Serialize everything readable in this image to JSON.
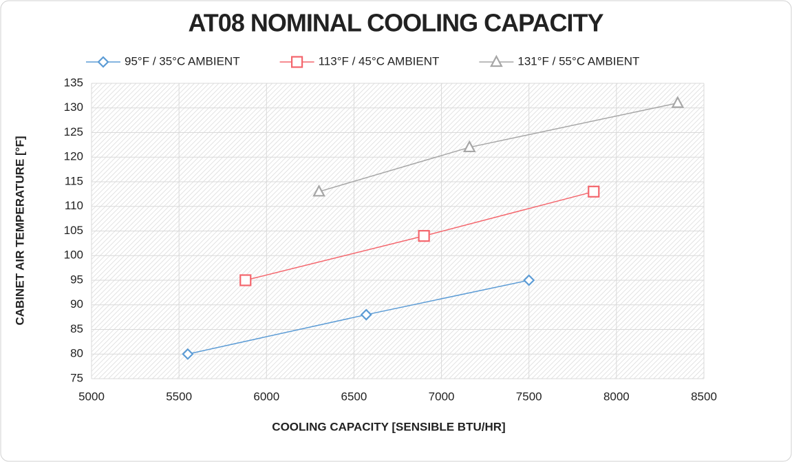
{
  "chart_data": {
    "type": "line",
    "title": "AT08 NOMINAL COOLING CAPACITY",
    "x_label": "COOLING CAPACITY [SENSIBLE BTU/HR]",
    "y_label": "CABINET AIR TEMPERATURE  [°F]",
    "legend": "top",
    "grid": true,
    "xlim": [
      5000,
      8500
    ],
    "xticks": [
      5000,
      5500,
      6000,
      6500,
      7000,
      7500,
      8000,
      8500
    ],
    "ylim": [
      75,
      135
    ],
    "yticks": [
      75,
      80,
      85,
      90,
      95,
      100,
      105,
      110,
      115,
      120,
      125,
      130,
      135
    ],
    "series": [
      {
        "name": "95°F / 35°C AMBIENT",
        "color": "#5b9bd5",
        "marker": "diamond",
        "x": [
          5550,
          6570,
          7500
        ],
        "values": [
          80,
          88,
          95
        ]
      },
      {
        "name": "113°F / 45°C AMBIENT",
        "color": "#f4656c",
        "marker": "square",
        "x": [
          5880,
          6900,
          7870
        ],
        "values": [
          95,
          104,
          113
        ]
      },
      {
        "name": "131°F / 55°C AMBIENT",
        "color": "#a6a6a6",
        "marker": "triangle",
        "x": [
          6300,
          7160,
          8350
        ],
        "values": [
          113,
          122,
          131
        ]
      }
    ]
  }
}
